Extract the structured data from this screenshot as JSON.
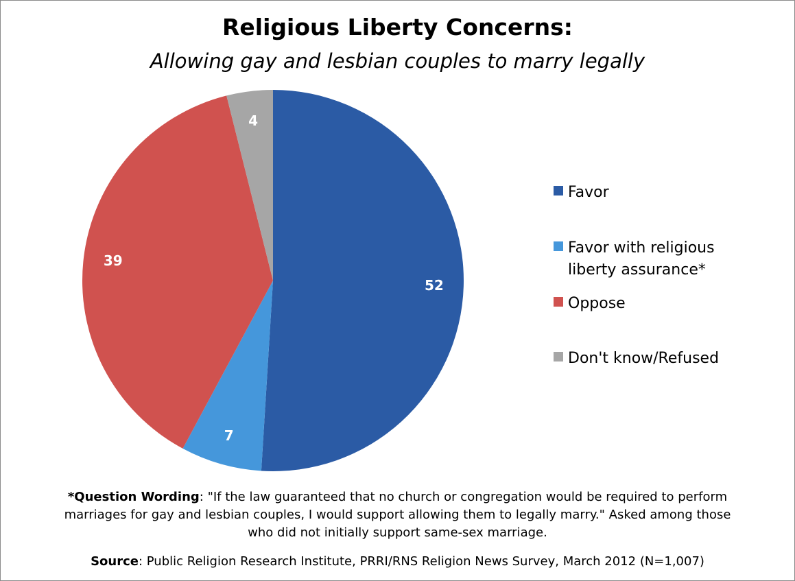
{
  "chart_data": {
    "type": "pie",
    "title": "Religious Liberty Concerns:",
    "subtitle": "Allowing gay and lesbian couples to marry legally",
    "slices": [
      {
        "label": "Favor",
        "value": 52,
        "color": "#2B5BA5"
      },
      {
        "label": "Favor with religious liberty assurance*",
        "value": 7,
        "color": "#4597DB"
      },
      {
        "label": "Oppose",
        "value": 39,
        "color": "#D0524F"
      },
      {
        "label": "Don't know/Refused",
        "value": 4,
        "color": "#A6A6A6"
      }
    ],
    "legend": {
      "placement": "right",
      "items": [
        {
          "lines": [
            "Favor"
          ],
          "color": "#2B5BA5"
        },
        {
          "lines": [
            "Favor with religious",
            "liberty assurance*"
          ],
          "color": "#4597DB"
        },
        {
          "lines": [
            "Oppose"
          ],
          "color": "#D0524F"
        },
        {
          "lines": [
            "Don't know/Refused"
          ],
          "color": "#A6A6A6"
        }
      ]
    }
  },
  "footnote": {
    "label": "*Question Wording",
    "text_line1": ": \"If the law guaranteed that no church or congregation would be required to perform",
    "text_line2": "marriages for gay and lesbian couples, I would support allowing them to legally marry.\" Asked among those",
    "text_line3": "who did not initially support same-sex marriage."
  },
  "source": {
    "label": "Source",
    "text": ": Public Religion Research Institute, PRRI/RNS Religion News Survey, March 2012 (N=1,007)"
  }
}
